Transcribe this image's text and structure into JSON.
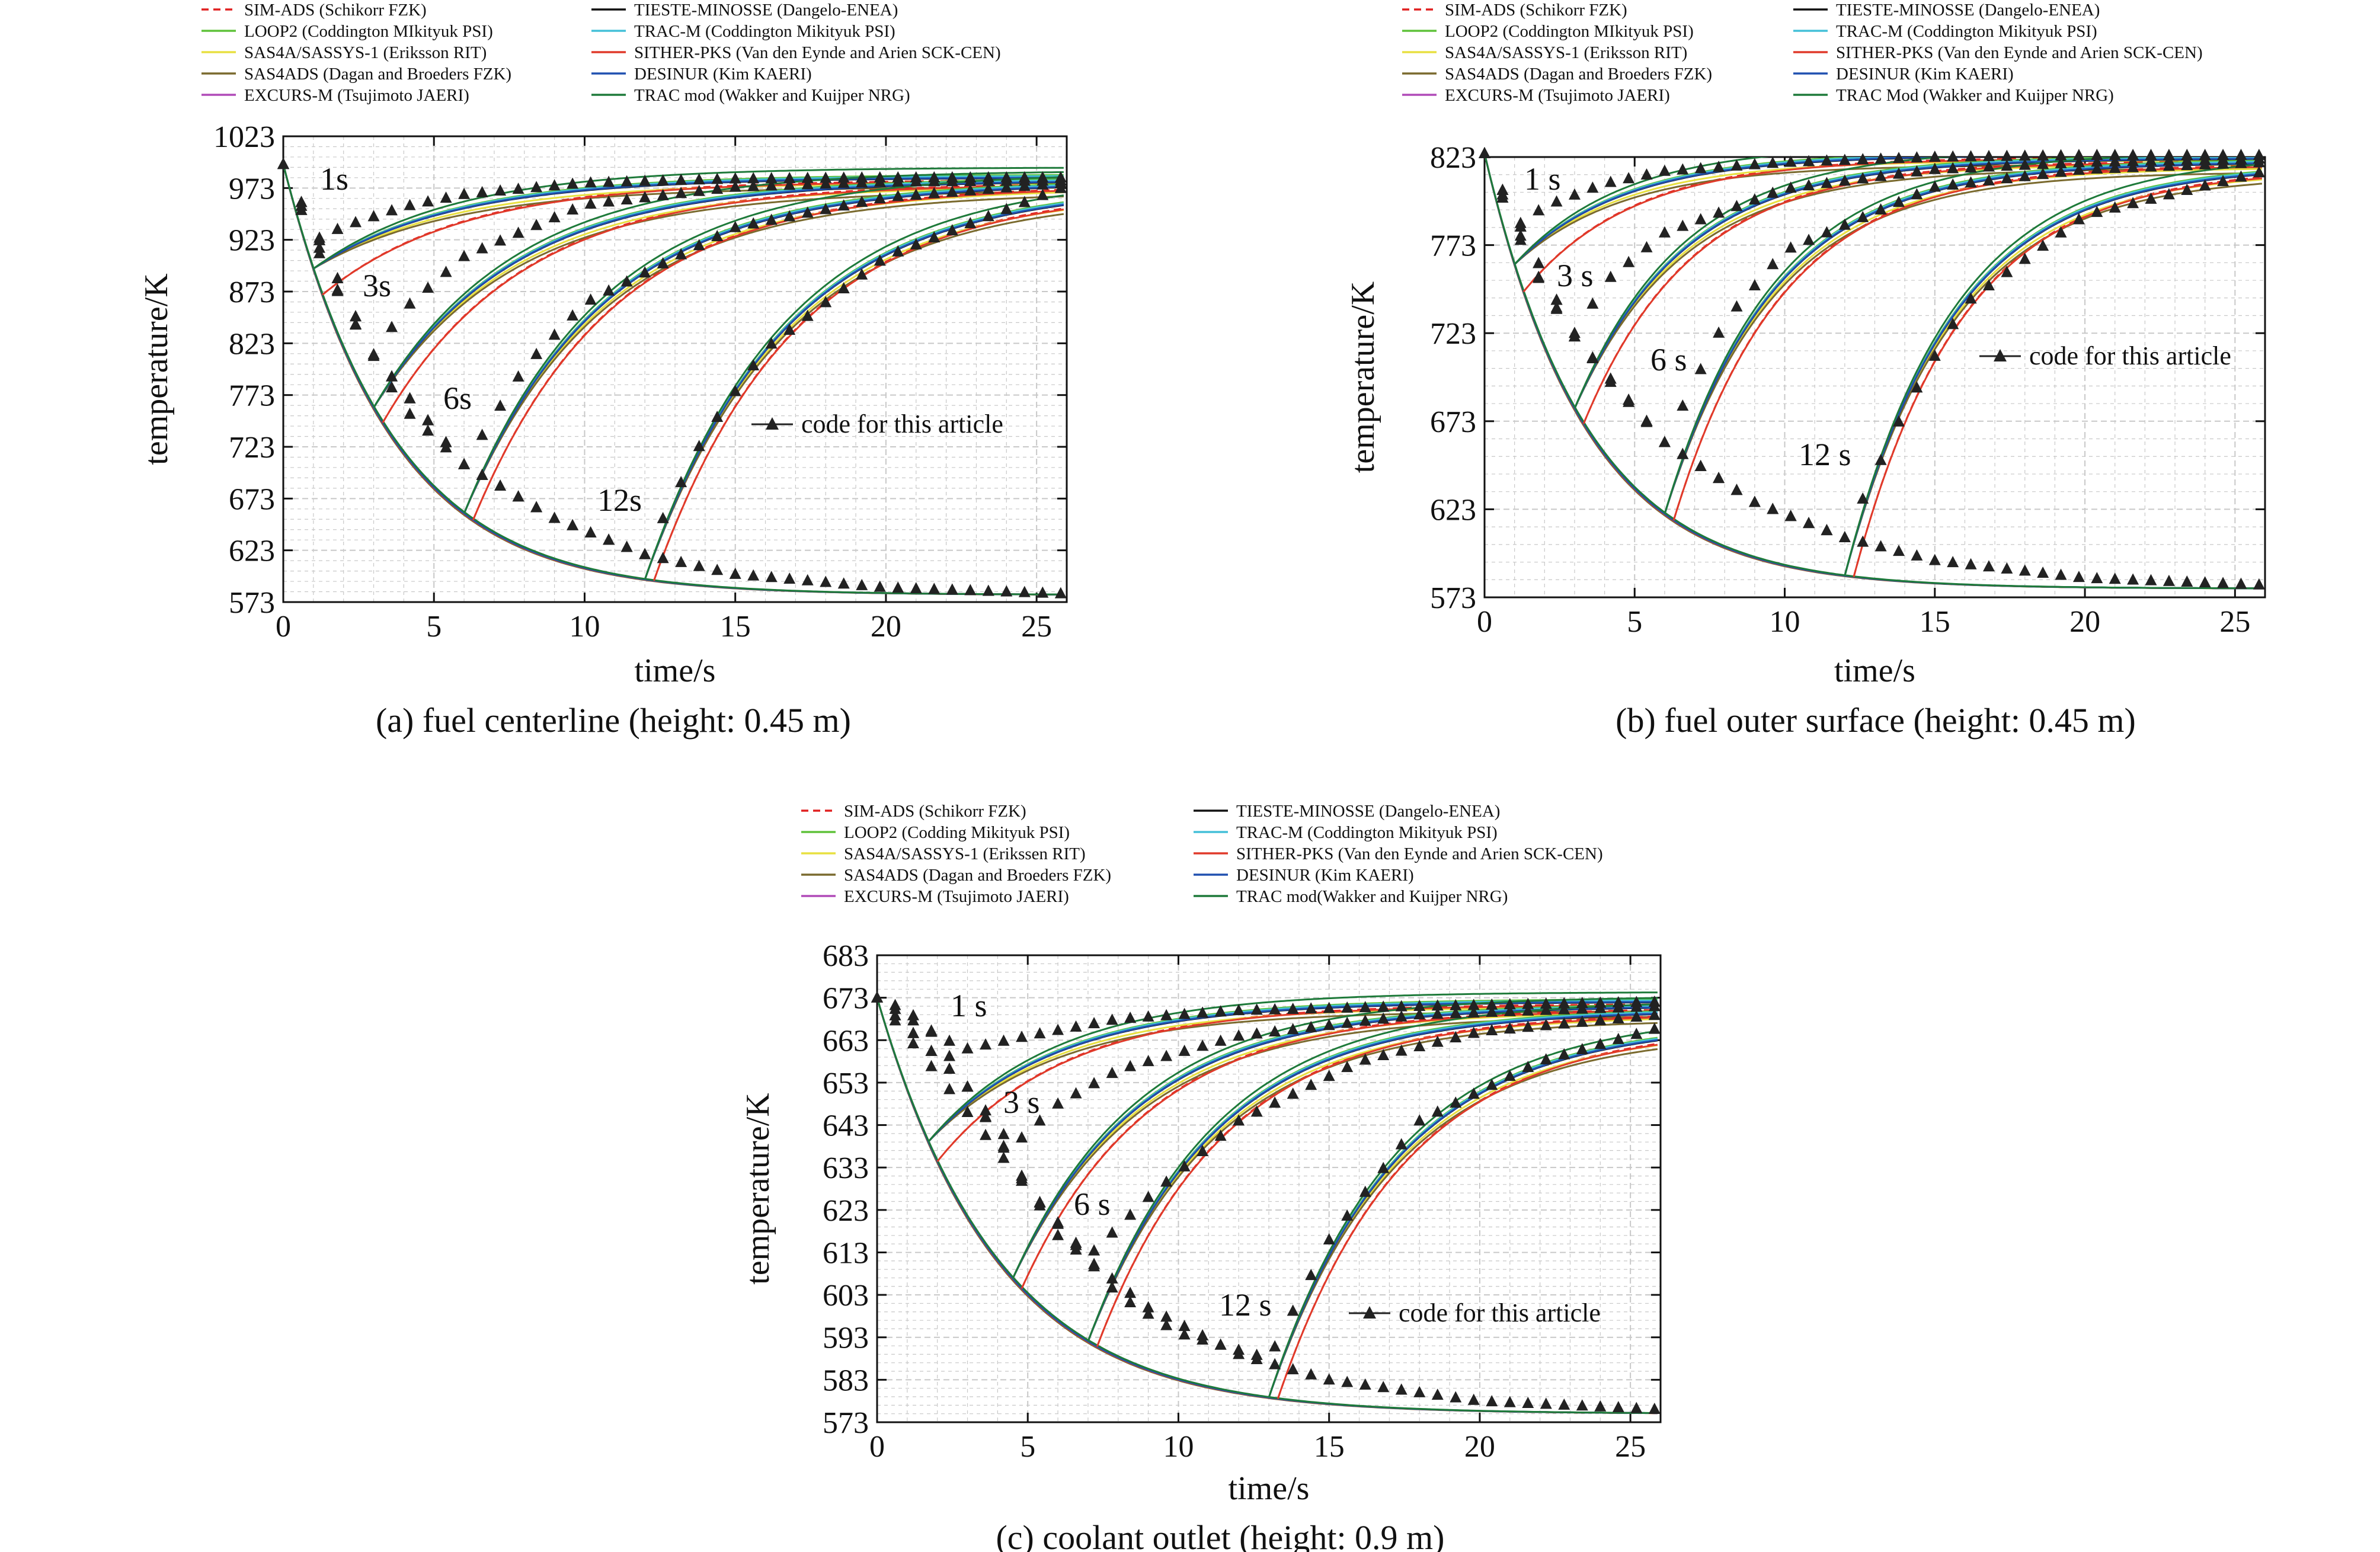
{
  "colors": {
    "SIM-ADS": "#e02020",
    "LOOP2": "#5fc23a",
    "SAS4A": "#e8e040",
    "SAS4ADS": "#7a6a2e",
    "EXCURS-M": "#b04ab8",
    "TIESTE": "#111111",
    "TRAC-M": "#44c0d8",
    "SITHER": "#e03a2a",
    "DESINUR": "#2050b0",
    "TRACmod": "#1e7a3a",
    "code": "#222222",
    "grid": "#c8c8c8"
  },
  "chart_data": [
    {
      "type": "line",
      "caption": "(a) fuel centerline (height: 0.45 m)",
      "xlabel": "time/s",
      "ylabel": "temperature/K",
      "xlim": [
        0,
        26
      ],
      "ylim": [
        573,
        1023
      ],
      "xticks": [
        "0",
        "5",
        "10",
        "15",
        "20",
        "25"
      ],
      "yticks": [
        "573",
        "623",
        "673",
        "723",
        "773",
        "823",
        "873",
        "923",
        "973",
        "1023"
      ],
      "grid": true,
      "legend": {
        "position": "top",
        "entries": [
          {
            "key": "SIM-ADS",
            "label": "SIM-ADS (Schikorr FZK)",
            "style": "dashed"
          },
          {
            "key": "LOOP2",
            "label": "LOOP2 (Coddington MIkityuk PSI)",
            "style": "solid"
          },
          {
            "key": "SAS4A",
            "label": "SAS4A/SASSYS-1 (Eriksson RIT)",
            "style": "solid"
          },
          {
            "key": "SAS4ADS",
            "label": "SAS4ADS (Dagan and Broeders FZK)",
            "style": "solid"
          },
          {
            "key": "EXCURS-M",
            "label": "EXCURS-M (Tsujimoto JAERI)",
            "style": "solid"
          },
          {
            "key": "TIESTE",
            "label": "TIESTE-MINOSSE (Dangelo-ENEA)",
            "style": "solid"
          },
          {
            "key": "TRAC-M",
            "label": "TRAC-M (Coddington Mikityuk PSI)",
            "style": "solid"
          },
          {
            "key": "SITHER",
            "label": "SITHER-PKS (Van den Eynde and Arien SCK-CEN)",
            "style": "solid"
          },
          {
            "key": "DESINUR",
            "label": "DESINUR (Kim KAERI)",
            "style": "solid"
          },
          {
            "key": "TRACmod",
            "label": "TRAC mod (Wakker and Kuijper NRG)",
            "style": "solid"
          }
        ]
      },
      "inline_legend": "code for this article",
      "callouts": [
        "1s",
        "3s",
        "6s",
        "12s"
      ],
      "model": {
        "T0": 996,
        "Tinf": 580,
        "tau": 3.6,
        "rise": 4.6,
        "cases": [
          1,
          3,
          6,
          12
        ],
        "plateau": [
          983,
          980,
          978,
          975
        ]
      },
      "series": [
        {
          "name": "1s",
          "x": [
            0,
            1,
            2,
            4,
            6,
            10,
            15,
            20,
            26
          ],
          "y": [
            996,
            922,
            936,
            955,
            967,
            978,
            982,
            983,
            983
          ]
        },
        {
          "name": "3s",
          "x": [
            0,
            1,
            2,
            3,
            4,
            6,
            10,
            15,
            20,
            26
          ],
          "y": [
            996,
            922,
            861,
            812,
            856,
            907,
            957,
            974,
            979,
            980
          ]
        },
        {
          "name": "6s",
          "x": [
            0,
            2,
            4,
            6,
            8,
            10,
            15,
            20,
            26
          ],
          "y": [
            996,
            861,
            760,
            706,
            800,
            862,
            935,
            964,
            978
          ]
        },
        {
          "name": "12s",
          "x": [
            0,
            3,
            6,
            9,
            12,
            14,
            16,
            20,
            26
          ],
          "y": [
            996,
            812,
            706,
            654,
            619,
            735,
            818,
            907,
            975
          ]
        },
        {
          "name": "baseline",
          "x": [
            0,
            3,
            6,
            9,
            12,
            15,
            20,
            26
          ],
          "y": [
            996,
            812,
            706,
            654,
            619,
            600,
            587,
            581
          ]
        }
      ]
    },
    {
      "type": "line",
      "caption": "(b) fuel outer surface (height: 0.45 m)",
      "xlabel": "time/s",
      "ylabel": "temperature/K",
      "xlim": [
        0,
        26
      ],
      "ylim": [
        573,
        823
      ],
      "xticks": [
        "0",
        "5",
        "10",
        "15",
        "20",
        "25"
      ],
      "yticks": [
        "573",
        "623",
        "673",
        "723",
        "773",
        "823"
      ],
      "grid": true,
      "legend": {
        "position": "top",
        "entries": [
          {
            "key": "SIM-ADS",
            "label": "SIM-ADS (Schikorr FZK)",
            "style": "dashed"
          },
          {
            "key": "LOOP2",
            "label": "LOOP2 (Coddington MIkityuk PSI)",
            "style": "solid"
          },
          {
            "key": "SAS4A",
            "label": "SAS4A/SASSYS-1 (Eriksson RIT)",
            "style": "solid"
          },
          {
            "key": "SAS4ADS",
            "label": "SAS4ADS (Dagan and Broeders FZK)",
            "style": "solid"
          },
          {
            "key": "EXCURS-M",
            "label": "EXCURS-M (Tsujimoto JAERI)",
            "style": "solid"
          },
          {
            "key": "TIESTE",
            "label": "TIESTE-MINOSSE (Dangelo-ENEA)",
            "style": "solid"
          },
          {
            "key": "TRAC-M",
            "label": "TRAC-M (Coddington Mikityuk PSI)",
            "style": "solid"
          },
          {
            "key": "SITHER",
            "label": "SITHER-PKS (Van den Eynde and Arien SCK-CEN)",
            "style": "solid"
          },
          {
            "key": "DESINUR",
            "label": "DESINUR (Kim KAERI)",
            "style": "solid"
          },
          {
            "key": "TRACmod",
            "label": "TRAC Mod (Wakker and Kuijper NRG)",
            "style": "solid"
          }
        ]
      },
      "inline_legend": "code for this article",
      "callouts": [
        "1 s",
        "3 s",
        "6 s",
        "12 s"
      ],
      "model": {
        "T0": 825,
        "Tinf": 578,
        "tau": 3.4,
        "rise": 3.6,
        "cases": [
          1,
          3,
          6,
          12
        ],
        "plateau": [
          824,
          822,
          820,
          818
        ]
      },
      "series": [
        {
          "name": "1 s",
          "x": [
            0,
            1,
            2,
            4,
            6,
            10,
            15,
            20,
            26
          ],
          "y": [
            825,
            783,
            795,
            808,
            815,
            820,
            823,
            824,
            824
          ]
        },
        {
          "name": "3 s",
          "x": [
            0,
            1,
            2,
            3,
            4,
            6,
            10,
            15,
            20,
            26
          ],
          "y": [
            825,
            783,
            747,
            721,
            752,
            780,
            805,
            816,
            820,
            822
          ]
        },
        {
          "name": "6 s",
          "x": [
            0,
            2,
            4,
            6,
            8,
            10,
            15,
            20,
            26
          ],
          "y": [
            825,
            747,
            699,
            661,
            730,
            770,
            806,
            816,
            820
          ]
        },
        {
          "name": "12 s",
          "x": [
            0,
            3,
            6,
            9,
            12,
            14,
            16,
            20,
            26
          ],
          "y": [
            825,
            721,
            661,
            627,
            607,
            680,
            740,
            790,
            815
          ]
        },
        {
          "name": "baseline",
          "x": [
            0,
            3,
            6,
            9,
            12,
            15,
            20,
            26
          ],
          "y": [
            825,
            721,
            661,
            627,
            607,
            594,
            584,
            580
          ]
        }
      ]
    },
    {
      "type": "line",
      "caption": "(c) coolant outlet (height: 0.9 m)",
      "xlabel": "time/s",
      "ylabel": "temperature/K",
      "xlim": [
        0,
        26
      ],
      "ylim": [
        573,
        683
      ],
      "xticks": [
        "0",
        "5",
        "10",
        "15",
        "20",
        "25"
      ],
      "yticks": [
        "573",
        "583",
        "593",
        "603",
        "613",
        "623",
        "633",
        "643",
        "653",
        "663",
        "673",
        "683"
      ],
      "grid": true,
      "legend": {
        "position": "top",
        "entries": [
          {
            "key": "SIM-ADS",
            "label": "SIM-ADS (Schikorr FZK)",
            "style": "dashed"
          },
          {
            "key": "LOOP2",
            "label": "LOOP2 (Codding Mikityuk PSI)",
            "style": "solid"
          },
          {
            "key": "SAS4A",
            "label": "SAS4A/SASSYS-1 (Erikssen RIT)",
            "style": "solid"
          },
          {
            "key": "SAS4ADS",
            "label": "SAS4ADS (Dagan and Broeders FZK)",
            "style": "solid"
          },
          {
            "key": "EXCURS-M",
            "label": "EXCURS-M (Tsujimoto JAERI)",
            "style": "solid"
          },
          {
            "key": "TIESTE",
            "label": "TIESTE-MINOSSE (Dangelo-ENEA)",
            "style": "solid"
          },
          {
            "key": "TRAC-M",
            "label": "TRAC-M (Coddington Mikityuk PSI)",
            "style": "solid"
          },
          {
            "key": "SITHER",
            "label": "SITHER-PKS (Van den Eynde and Arien SCK-CEN)",
            "style": "solid"
          },
          {
            "key": "DESINUR",
            "label": "DESINUR (Kim KAERI)",
            "style": "solid"
          },
          {
            "key": "TRACmod",
            "label": "TRAC mod(Wakker and Kuijper NRG)",
            "style": "solid"
          }
        ]
      },
      "inline_legend": "code for this article",
      "callouts": [
        "1 s",
        "3 s",
        "6 s",
        "12 s"
      ],
      "model": {
        "T0": 673,
        "Tinf": 575,
        "tau": 4.0,
        "rise": 4.2,
        "cases": [
          1.7,
          4.5,
          7.0,
          13.0
        ],
        "plateau": [
          672,
          671,
          670,
          667
        ]
      },
      "series": [
        {
          "name": "1 s",
          "x": [
            0,
            1,
            2,
            3,
            5,
            8,
            12,
            18,
            26
          ],
          "y": [
            673,
            670,
            664,
            661,
            664,
            668,
            670,
            671,
            672
          ]
        },
        {
          "name": "3 s",
          "x": [
            0,
            2,
            3,
            4.5,
            6,
            8,
            12,
            18,
            26
          ],
          "y": [
            673,
            664,
            652,
            638,
            648,
            656,
            664,
            669,
            671
          ]
        },
        {
          "name": "6 s",
          "x": [
            0,
            3,
            5,
            7,
            9,
            12,
            16,
            20,
            26
          ],
          "y": [
            673,
            652,
            628,
            612,
            626,
            644,
            658,
            665,
            669
          ]
        },
        {
          "name": "12 s",
          "x": [
            0,
            5,
            8,
            10,
            13,
            15,
            18,
            22,
            26
          ],
          "y": [
            673,
            628,
            603,
            594,
            588,
            616,
            644,
            658,
            666
          ]
        },
        {
          "name": "baseline",
          "x": [
            0,
            3,
            6,
            9,
            12,
            15,
            20,
            26
          ],
          "y": [
            673,
            652,
            617,
            600,
            589,
            583,
            578,
            576
          ]
        }
      ]
    }
  ]
}
